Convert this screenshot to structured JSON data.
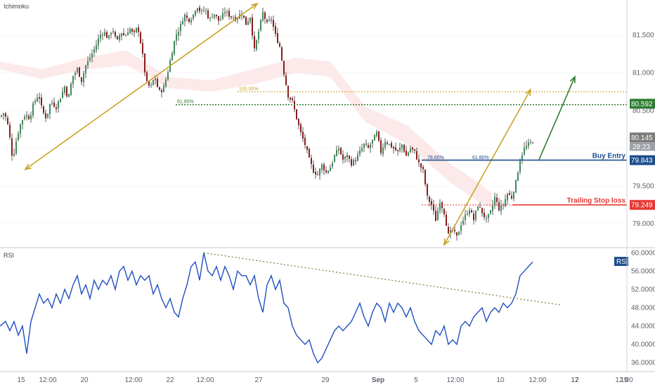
{
  "colors": {
    "up": "#3d8b5c",
    "down": "#8b1c1c",
    "wick": "#333333",
    "rsi_line": "#1f4fbf",
    "gold": "#c9a227",
    "green": "#2e7d32",
    "blue": "#1f4e8c",
    "red": "#e53935",
    "cloud": "#fbe3e3",
    "grid": "#eef0f3",
    "axis_text": "#5d606b"
  },
  "chart_data": [
    {
      "type": "candlestick",
      "title": "Ichimoku",
      "x_ticks": [
        "15",
        "12:00",
        "20",
        "12:00",
        "22",
        "12:00",
        "27",
        "29",
        "Sep",
        "5",
        "12:00",
        "10",
        "12:00",
        "12",
        "12:00",
        "17",
        "19"
      ],
      "y_ticks": [
        "81.500",
        "81.000",
        "80.500",
        "80.000",
        "79.500",
        "79.000"
      ],
      "ylim": [
        78.7,
        81.95
      ],
      "close_path": [
        [
          0,
          80.42
        ],
        [
          6,
          80.48
        ],
        [
          12,
          80.28
        ],
        [
          18,
          79.85
        ],
        [
          24,
          80.15
        ],
        [
          30,
          80.35
        ],
        [
          36,
          80.45
        ],
        [
          42,
          80.4
        ],
        [
          48,
          80.6
        ],
        [
          55,
          80.72
        ],
        [
          60,
          80.5
        ],
        [
          66,
          80.4
        ],
        [
          72,
          80.62
        ],
        [
          80,
          80.55
        ],
        [
          86,
          80.68
        ],
        [
          92,
          80.82
        ],
        [
          97,
          80.65
        ],
        [
          103,
          80.95
        ],
        [
          110,
          81.05
        ],
        [
          116,
          80.9
        ],
        [
          122,
          81.1
        ],
        [
          128,
          81.2
        ],
        [
          136,
          81.35
        ],
        [
          142,
          81.5
        ],
        [
          148,
          81.55
        ],
        [
          154,
          81.45
        ],
        [
          160,
          81.6
        ],
        [
          166,
          81.4
        ],
        [
          172,
          81.55
        ],
        [
          178,
          81.48
        ],
        [
          184,
          81.6
        ],
        [
          190,
          81.5
        ],
        [
          196,
          81.62
        ],
        [
          202,
          81.3
        ],
        [
          208,
          80.88
        ],
        [
          214,
          80.8
        ],
        [
          220,
          80.95
        ],
        [
          226,
          80.75
        ],
        [
          232,
          80.78
        ],
        [
          238,
          80.98
        ],
        [
          244,
          81.25
        ],
        [
          250,
          81.5
        ],
        [
          256,
          81.6
        ],
        [
          262,
          81.78
        ],
        [
          268,
          81.7
        ],
        [
          274,
          81.75
        ],
        [
          280,
          81.9
        ],
        [
          286,
          81.8
        ],
        [
          292,
          81.85
        ],
        [
          298,
          81.7
        ],
        [
          304,
          81.8
        ],
        [
          312,
          81.68
        ],
        [
          320,
          81.82
        ],
        [
          328,
          81.75
        ],
        [
          336,
          81.72
        ],
        [
          344,
          81.8
        ],
        [
          350,
          81.65
        ],
        [
          356,
          81.75
        ],
        [
          362,
          81.3
        ],
        [
          368,
          81.55
        ],
        [
          374,
          81.8
        ],
        [
          380,
          81.65
        ],
        [
          386,
          81.72
        ],
        [
          392,
          81.5
        ],
        [
          398,
          81.35
        ],
        [
          404,
          81.0
        ],
        [
          410,
          80.7
        ],
        [
          416,
          80.62
        ],
        [
          422,
          80.4
        ],
        [
          428,
          80.2
        ],
        [
          434,
          80.05
        ],
        [
          440,
          79.85
        ],
        [
          446,
          79.7
        ],
        [
          452,
          79.65
        ],
        [
          458,
          79.78
        ],
        [
          464,
          79.68
        ],
        [
          470,
          79.75
        ],
        [
          476,
          79.9
        ],
        [
          482,
          80.0
        ],
        [
          488,
          79.85
        ],
        [
          494,
          79.9
        ],
        [
          500,
          79.8
        ],
        [
          506,
          79.85
        ],
        [
          512,
          79.95
        ],
        [
          518,
          80.05
        ],
        [
          524,
          80.0
        ],
        [
          530,
          80.1
        ],
        [
          536,
          80.2
        ],
        [
          542,
          79.95
        ],
        [
          548,
          80.1
        ],
        [
          554,
          80.05
        ],
        [
          560,
          80.0
        ],
        [
          566,
          79.95
        ],
        [
          572,
          80.05
        ],
        [
          578,
          79.9
        ],
        [
          584,
          80.0
        ],
        [
          590,
          79.95
        ],
        [
          596,
          79.8
        ],
        [
          602,
          79.7
        ],
        [
          608,
          79.35
        ],
        [
          614,
          79.25
        ],
        [
          620,
          79.05
        ],
        [
          626,
          79.3
        ],
        [
          632,
          79.15
        ],
        [
          638,
          78.85
        ],
        [
          644,
          78.92
        ],
        [
          650,
          78.82
        ],
        [
          656,
          79.0
        ],
        [
          662,
          79.1
        ],
        [
          668,
          79.2
        ],
        [
          674,
          79.05
        ],
        [
          680,
          79.25
        ],
        [
          686,
          79.15
        ],
        [
          692,
          79.05
        ],
        [
          698,
          79.15
        ],
        [
          704,
          79.35
        ],
        [
          710,
          79.2
        ],
        [
          716,
          79.25
        ],
        [
          722,
          79.4
        ],
        [
          728,
          79.35
        ],
        [
          734,
          79.55
        ],
        [
          740,
          79.85
        ],
        [
          746,
          80.0
        ],
        [
          752,
          80.05
        ],
        [
          758,
          80.1
        ]
      ],
      "cloud": [
        [
          0,
          81.15,
          81.05
        ],
        [
          60,
          81.05,
          80.92
        ],
        [
          120,
          81.2,
          81.05
        ],
        [
          180,
          81.3,
          81.1
        ],
        [
          240,
          80.95,
          80.8
        ],
        [
          300,
          80.9,
          80.75
        ],
        [
          360,
          81.05,
          80.85
        ],
        [
          420,
          81.2,
          81.0
        ],
        [
          470,
          81.15,
          80.95
        ],
        [
          520,
          80.55,
          80.35
        ],
        [
          580,
          80.3,
          80.05
        ],
        [
          640,
          79.8,
          79.55
        ],
        [
          680,
          79.55,
          79.3
        ],
        [
          700,
          79.4,
          79.2
        ]
      ],
      "trendlines": [
        {
          "from": [
            36,
            79.72
          ],
          "to": [
            366,
            81.92
          ],
          "color": "gold"
        },
        {
          "from": [
            632,
            78.72
          ],
          "to": [
            755,
            80.78
          ],
          "color": "gold"
        },
        {
          "from": [
            767,
            79.85
          ],
          "to": [
            818,
            80.95
          ],
          "color": "green"
        }
      ],
      "fib_levels": [
        {
          "label": "100.00%",
          "value": 80.75,
          "start_x": 338,
          "color": "gold"
        },
        {
          "label": "61.80%",
          "value": 80.58,
          "start_x": 250,
          "color": "green"
        },
        {
          "label": "78.60%",
          "value": 79.84,
          "start_x": 600,
          "color": "blue",
          "label_x": 608
        },
        {
          "label": "61.80%",
          "value": 79.84,
          "start_x": 600,
          "color": "blue",
          "label_x": 672
        }
      ],
      "levels": [
        {
          "name": "buy_entry",
          "label": "Buy Entry",
          "value": 79.843,
          "start_x": 600,
          "color": "blue"
        },
        {
          "name": "trailing_stop",
          "label": "Trailing Stop loss",
          "value": 79.249,
          "start_x": 730,
          "color": "red"
        }
      ],
      "price_badges": [
        {
          "text": "80.592",
          "value": 80.592,
          "color": "green"
        },
        {
          "text": "80.145",
          "value": 80.145,
          "color": "grey",
          "sub": "28:23"
        },
        {
          "text": "79.843",
          "value": 79.843,
          "color": "blue"
        },
        {
          "text": "79.249",
          "value": 79.249,
          "color": "red"
        }
      ]
    },
    {
      "type": "line",
      "title": "RSI",
      "y_ticks": [
        "60.0000",
        "56.0000",
        "52.0000",
        "48.0000",
        "44.0000",
        "40.0000",
        "36.0000"
      ],
      "ylim": [
        35,
        60.5
      ],
      "series": [
        {
          "name": "RSI",
          "points": [
            [
              0,
              44
            ],
            [
              8,
              45
            ],
            [
              14,
              43
            ],
            [
              20,
              45
            ],
            [
              26,
              42
            ],
            [
              32,
              44
            ],
            [
              38,
              38
            ],
            [
              44,
              45
            ],
            [
              50,
              48
            ],
            [
              56,
              51
            ],
            [
              62,
              49
            ],
            [
              68,
              50
            ],
            [
              74,
              48
            ],
            [
              80,
              51
            ],
            [
              86,
              49
            ],
            [
              92,
              52
            ],
            [
              98,
              50
            ],
            [
              104,
              53
            ],
            [
              110,
              55
            ],
            [
              116,
              51
            ],
            [
              122,
              53
            ],
            [
              128,
              50
            ],
            [
              134,
              54
            ],
            [
              140,
              52
            ],
            [
              146,
              54
            ],
            [
              152,
              53
            ],
            [
              158,
              55
            ],
            [
              164,
              52
            ],
            [
              170,
              56
            ],
            [
              176,
              57
            ],
            [
              182,
              54
            ],
            [
              188,
              56
            ],
            [
              194,
              53
            ],
            [
              200,
              55
            ],
            [
              206,
              54
            ],
            [
              212,
              55
            ],
            [
              218,
              51
            ],
            [
              224,
              53
            ],
            [
              230,
              50
            ],
            [
              236,
              48
            ],
            [
              242,
              50
            ],
            [
              248,
              47
            ],
            [
              254,
              46
            ],
            [
              260,
              50
            ],
            [
              266,
              53
            ],
            [
              272,
              57
            ],
            [
              278,
              58
            ],
            [
              284,
              54
            ],
            [
              290,
              60
            ],
            [
              296,
              56
            ],
            [
              302,
              55
            ],
            [
              308,
              57
            ],
            [
              314,
              54
            ],
            [
              320,
              57
            ],
            [
              326,
              55
            ],
            [
              332,
              52
            ],
            [
              338,
              56
            ],
            [
              344,
              55
            ],
            [
              350,
              55
            ],
            [
              356,
              53
            ],
            [
              362,
              55
            ],
            [
              368,
              50
            ],
            [
              374,
              47
            ],
            [
              380,
              53
            ],
            [
              386,
              55
            ],
            [
              392,
              52
            ],
            [
              398,
              54
            ],
            [
              404,
              49
            ],
            [
              410,
              48
            ],
            [
              416,
              44
            ],
            [
              422,
              42
            ],
            [
              428,
              41
            ],
            [
              434,
              40
            ],
            [
              440,
              41
            ],
            [
              446,
              38
            ],
            [
              452,
              36
            ],
            [
              458,
              37
            ],
            [
              464,
              39
            ],
            [
              470,
              41
            ],
            [
              476,
              43
            ],
            [
              482,
              44
            ],
            [
              488,
              43
            ],
            [
              494,
              44
            ],
            [
              500,
              45
            ],
            [
              506,
              47
            ],
            [
              512,
              49
            ],
            [
              518,
              46
            ],
            [
              524,
              44
            ],
            [
              530,
              47
            ],
            [
              536,
              49
            ],
            [
              542,
              48
            ],
            [
              548,
              45
            ],
            [
              554,
              49
            ],
            [
              560,
              47
            ],
            [
              566,
              49
            ],
            [
              572,
              48
            ],
            [
              578,
              46
            ],
            [
              584,
              48
            ],
            [
              590,
              45
            ],
            [
              596,
              43
            ],
            [
              602,
              42
            ],
            [
              608,
              41
            ],
            [
              614,
              40
            ],
            [
              620,
              43
            ],
            [
              626,
              42
            ],
            [
              632,
              44
            ],
            [
              638,
              40
            ],
            [
              644,
              41
            ],
            [
              650,
              40
            ],
            [
              656,
              44
            ],
            [
              662,
              45
            ],
            [
              668,
              44
            ],
            [
              674,
              46
            ],
            [
              680,
              47
            ],
            [
              686,
              48
            ],
            [
              692,
              45
            ],
            [
              698,
              47
            ],
            [
              704,
              48
            ],
            [
              710,
              47
            ],
            [
              716,
              49
            ],
            [
              722,
              48
            ],
            [
              728,
              49
            ],
            [
              734,
              51
            ],
            [
              740,
              55
            ],
            [
              746,
              56
            ],
            [
              752,
              57
            ],
            [
              758,
              58
            ]
          ]
        }
      ],
      "trendline": {
        "from": [
          290,
          60.0
        ],
        "to": [
          798,
          48.6
        ],
        "color": "olive"
      },
      "legend_badge": "RSI"
    }
  ]
}
